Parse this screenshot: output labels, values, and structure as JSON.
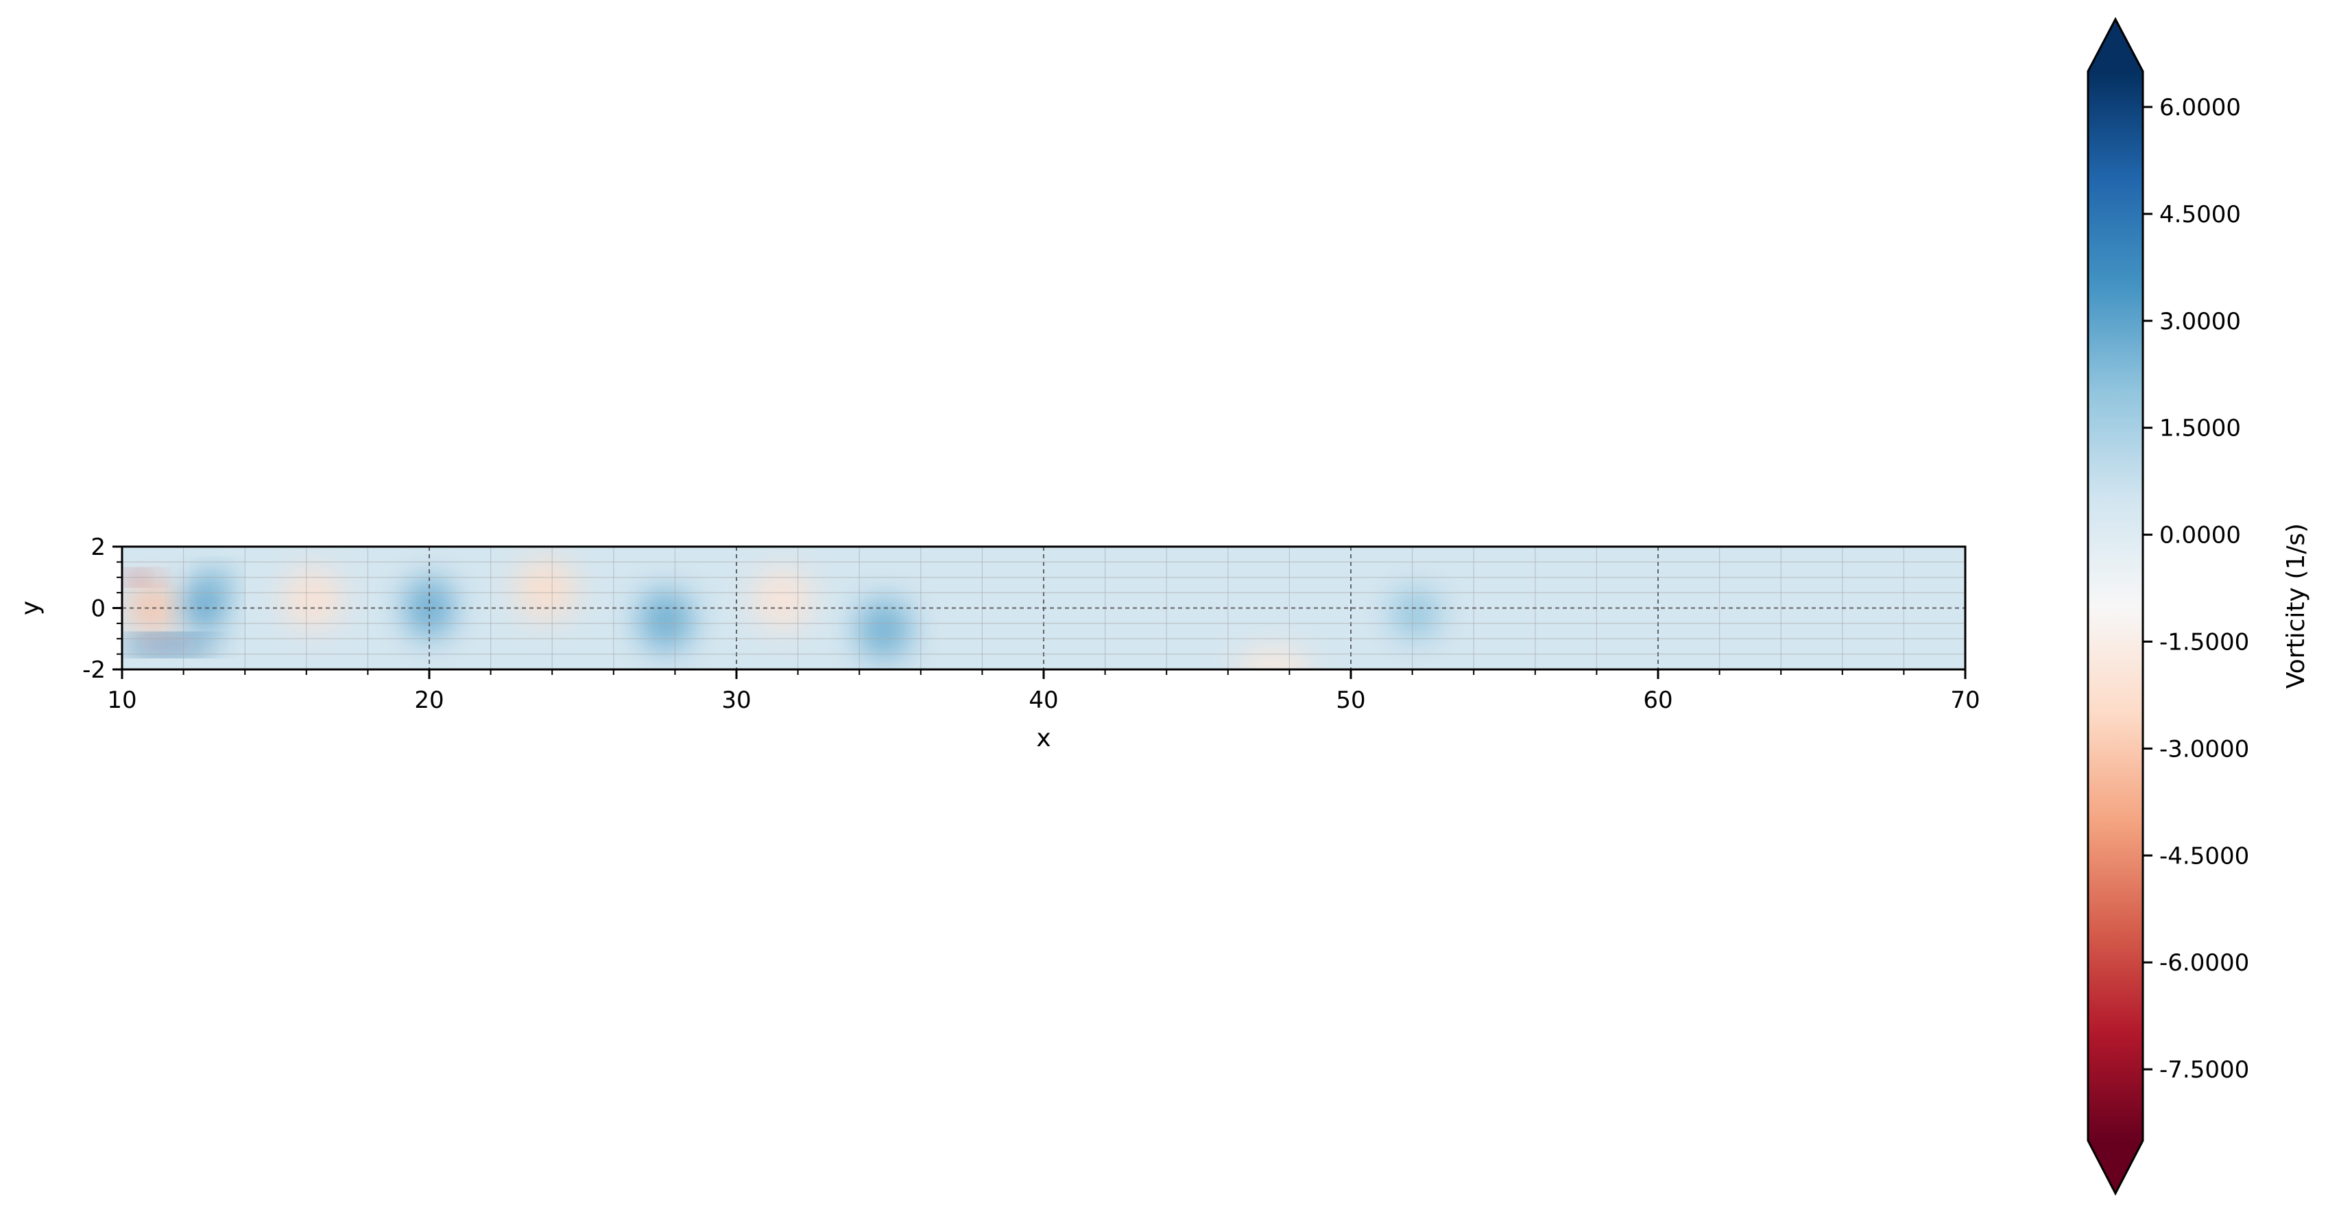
{
  "chart_data": {
    "type": "heatmap",
    "title": "",
    "xlabel": "x",
    "ylabel": "y",
    "xlim": [
      10,
      70
    ],
    "ylim": [
      -2,
      2
    ],
    "x_ticks": [
      10,
      20,
      30,
      40,
      50,
      60,
      70
    ],
    "y_ticks": [
      -2,
      0,
      2
    ],
    "x_tick_labels": [
      "10",
      "20",
      "30",
      "40",
      "50",
      "60",
      "70"
    ],
    "y_tick_labels": [
      "-2",
      "0",
      "2"
    ],
    "x_minor_step": 2,
    "y_minor_step": 0.5,
    "grid": true,
    "colormap": "RdBu",
    "colorbar": {
      "label": "Vorticity (1/s)",
      "range": [
        -8.5,
        6.5
      ],
      "ticks": [
        6.0,
        4.5,
        3.0,
        1.5,
        0.0,
        -1.5,
        -3.0,
        -4.5,
        -6.0,
        -7.5
      ],
      "tick_labels": [
        "6.0000",
        "4.5000",
        "3.0000",
        "1.5000",
        "0.0000",
        "-1.5000",
        "-3.0000",
        "-4.5000",
        "-6.0000",
        "-7.5000"
      ],
      "extend": "both",
      "colors": [
        "#67001f",
        "#b2182b",
        "#d6604d",
        "#f4a582",
        "#fddbc7",
        "#f7f7f7",
        "#d1e5f0",
        "#92c5de",
        "#4393c3",
        "#2166ac",
        "#053061"
      ]
    },
    "background_vorticity": 0.4,
    "vortices": [
      {
        "x": 11.0,
        "y": 0.0,
        "vorticity": -3.2,
        "rx": 0.8,
        "ry": 0.8
      },
      {
        "x": 10.5,
        "y": 1.0,
        "vorticity": -6.5,
        "rx": 0.5,
        "ry": 0.15
      },
      {
        "x": 11.5,
        "y": -1.2,
        "vorticity": 5.5,
        "rx": 1.6,
        "ry": 0.2
      },
      {
        "x": 12.7,
        "y": 0.1,
        "vorticity": 3.2,
        "rx": 0.6,
        "ry": 0.9
      },
      {
        "x": 13.1,
        "y": 0.8,
        "vorticity": 2.6,
        "rx": 0.4,
        "ry": 0.4
      },
      {
        "x": 16.2,
        "y": 0.3,
        "vorticity": -2.1,
        "rx": 1.0,
        "ry": 1.0
      },
      {
        "x": 20.0,
        "y": 0.0,
        "vorticity": 2.8,
        "rx": 0.8,
        "ry": 1.0
      },
      {
        "x": 23.8,
        "y": 0.6,
        "vorticity": -2.3,
        "rx": 1.0,
        "ry": 1.0
      },
      {
        "x": 27.7,
        "y": -0.4,
        "vorticity": 2.7,
        "rx": 0.9,
        "ry": 1.0
      },
      {
        "x": 31.5,
        "y": 0.3,
        "vorticity": -2.0,
        "rx": 1.0,
        "ry": 1.0
      },
      {
        "x": 34.8,
        "y": -0.7,
        "vorticity": 2.6,
        "rx": 0.9,
        "ry": 1.0
      },
      {
        "x": 47.5,
        "y": -2.0,
        "vorticity": -1.8,
        "rx": 1.2,
        "ry": 0.7
      },
      {
        "x": 52.1,
        "y": -0.2,
        "vorticity": 2.0,
        "rx": 0.8,
        "ry": 0.8
      }
    ]
  }
}
